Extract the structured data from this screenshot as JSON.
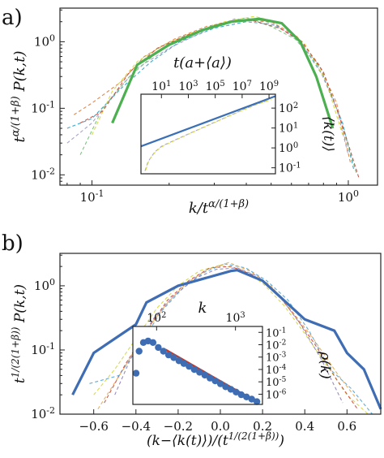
{
  "panel_labels": {
    "a": "a)",
    "b": "b)"
  },
  "palette": [
    "#2b9fc9",
    "#9e9ac8",
    "#6fbf73",
    "#e07b39",
    "#d5d53a",
    "#c9473a",
    "#4fa3d6",
    "#8c7fb8",
    "#e5a94a",
    "#5ab4ac",
    "#b2b843",
    "#d6604d"
  ],
  "chart_data": [
    {
      "id": "a-main",
      "type": "line",
      "xlabel": "k/t^{α/(1+β)}",
      "ylabel": "t^{α/(1+β)} P(k,t)",
      "xscale": "log",
      "yscale": "log",
      "xlim": [
        0.075,
        1.3
      ],
      "ylim": [
        0.007,
        3.2
      ],
      "xticks": [
        {
          "v": 0.1,
          "label": "10^{-1}"
        },
        {
          "v": 1,
          "label": "10^{0}"
        }
      ],
      "yticks": [
        {
          "v": 0.01,
          "label": "10^{-2}"
        },
        {
          "v": 0.1,
          "label": "10^{-1}"
        },
        {
          "v": 1,
          "label": "10^{0}"
        }
      ],
      "highlight": {
        "color": "#4caf50",
        "x": [
          0.12,
          0.15,
          0.2,
          0.27,
          0.35,
          0.45,
          0.55,
          0.65,
          0.75,
          0.87
        ],
        "y": [
          0.06,
          0.45,
          0.9,
          1.5,
          2.0,
          2.2,
          1.9,
          1.0,
          0.3,
          0.05
        ]
      },
      "series": [
        {
          "x": [
            0.08,
            0.1,
            0.13,
            0.17,
            0.22,
            0.3,
            0.4,
            0.52,
            0.65,
            0.8,
            0.95,
            1.05
          ],
          "y": [
            0.05,
            0.07,
            0.2,
            0.5,
            1.0,
            1.6,
            2.0,
            1.8,
            1.0,
            0.3,
            0.06,
            0.012
          ]
        },
        {
          "x": [
            0.08,
            0.1,
            0.12,
            0.15,
            0.2,
            0.27,
            0.36,
            0.48,
            0.6,
            0.75,
            0.9,
            1.0
          ],
          "y": [
            0.03,
            0.06,
            0.15,
            0.4,
            0.8,
            1.4,
            2.2,
            2.0,
            1.3,
            0.5,
            0.1,
            0.02
          ]
        },
        {
          "x": [
            0.09,
            0.11,
            0.14,
            0.18,
            0.23,
            0.3,
            0.4,
            0.5,
            0.62,
            0.78,
            0.92,
            1.08
          ],
          "y": [
            0.02,
            0.1,
            0.3,
            0.7,
            1.2,
            1.8,
            2.3,
            1.7,
            1.1,
            0.4,
            0.08,
            0.01
          ]
        },
        {
          "x": [
            0.085,
            0.1,
            0.13,
            0.16,
            0.21,
            0.28,
            0.38,
            0.5,
            0.63,
            0.77,
            0.9,
            1.02
          ],
          "y": [
            0.08,
            0.12,
            0.25,
            0.6,
            1.1,
            1.7,
            2.1,
            2.0,
            1.2,
            0.45,
            0.12,
            0.015
          ]
        },
        {
          "x": [
            0.1,
            0.12,
            0.15,
            0.19,
            0.25,
            0.33,
            0.43,
            0.55,
            0.68,
            0.82,
            0.95
          ],
          "y": [
            0.04,
            0.18,
            0.5,
            0.9,
            1.4,
            2.0,
            2.4,
            1.9,
            0.9,
            0.25,
            0.04
          ]
        },
        {
          "x": [
            0.09,
            0.11,
            0.14,
            0.18,
            0.24,
            0.32,
            0.42,
            0.54,
            0.66,
            0.8,
            0.93,
            1.1
          ],
          "y": [
            0.06,
            0.09,
            0.35,
            0.8,
            1.3,
            1.9,
            2.1,
            1.6,
            1.0,
            0.35,
            0.07,
            0.009
          ]
        }
      ]
    },
    {
      "id": "a-inset",
      "type": "line",
      "xlabel": "t(a+⟨a⟩)",
      "ylabel": "⟨k(t)⟩",
      "xscale": "log",
      "yscale": "log",
      "xlim": [
        0.3,
        3000000000.0
      ],
      "ylim": [
        0.05,
        500
      ],
      "xticks": [
        {
          "v": 10,
          "label": "10^{1}"
        },
        {
          "v": 1000,
          "label": "10^{3}"
        },
        {
          "v": 100000,
          "label": "10^{5}"
        },
        {
          "v": 10000000,
          "label": "10^{7}"
        },
        {
          "v": 1000000000,
          "label": "10^{9}"
        }
      ],
      "yticks": [
        {
          "v": 0.1,
          "label": "10^{-1}"
        },
        {
          "v": 1,
          "label": "10^{0}"
        },
        {
          "v": 10,
          "label": "10^{1}"
        },
        {
          "v": 100,
          "label": "10^{2}"
        }
      ],
      "fit": {
        "color": "#3b6fb6",
        "x": [
          0.3,
          3000000000.0
        ],
        "y": [
          1.2,
          400
        ]
      },
      "series": [
        {
          "x": [
            0.6,
            1,
            3,
            10,
            100,
            1000,
            10000,
            100000,
            1000000,
            10000000,
            100000000,
            1000000000
          ],
          "y": [
            0.07,
            0.2,
            0.6,
            1.2,
            2.5,
            5,
            10,
            20,
            40,
            80,
            150,
            250
          ]
        },
        {
          "x": [
            0.7,
            1.2,
            4,
            15,
            150,
            1500,
            15000,
            150000,
            1500000,
            15000000,
            150000000,
            1500000000
          ],
          "y": [
            0.08,
            0.25,
            0.7,
            1.3,
            2.7,
            5.5,
            11,
            22,
            44,
            85,
            160,
            270
          ]
        }
      ]
    },
    {
      "id": "b-main",
      "type": "line",
      "xlabel": "(k−⟨k(t)⟩)/(t^{1/(2(1+β))})",
      "ylabel": "t^{1/(2(1+β))} P(k,t)",
      "xscale": "linear",
      "yscale": "log",
      "xlim": [
        -0.76,
        0.76
      ],
      "ylim": [
        0.01,
        3.2
      ],
      "xticks": [
        {
          "v": -0.6,
          "label": "−0.6"
        },
        {
          "v": -0.4,
          "label": "−0.4"
        },
        {
          "v": -0.2,
          "label": "−0.2"
        },
        {
          "v": 0,
          "label": "0.0"
        },
        {
          "v": 0.2,
          "label": "0.2"
        },
        {
          "v": 0.4,
          "label": "0.4"
        },
        {
          "v": 0.6,
          "label": "0.6"
        }
      ],
      "yticks": [
        {
          "v": 0.01,
          "label": "10^{-2}"
        },
        {
          "v": 0.1,
          "label": "10^{-1}"
        },
        {
          "v": 1,
          "label": "10^{0}"
        }
      ],
      "highlight": {
        "color": "#3f6db3",
        "x": [
          -0.7,
          -0.6,
          -0.4,
          -0.35,
          -0.2,
          0.05,
          0.08,
          0.2,
          0.4,
          0.54,
          0.6,
          0.68,
          0.76
        ],
        "y": [
          0.02,
          0.09,
          0.25,
          0.55,
          1.0,
          1.7,
          1.75,
          1.2,
          0.3,
          0.2,
          0.09,
          0.05,
          0.012
        ]
      },
      "series": [
        {
          "x": [
            -0.6,
            -0.5,
            -0.4,
            -0.3,
            -0.2,
            -0.1,
            0,
            0.1,
            0.2,
            0.3,
            0.4,
            0.5,
            0.6,
            0.7
          ],
          "y": [
            0.02,
            0.05,
            0.15,
            0.45,
            1.0,
            1.7,
            2.1,
            1.8,
            1.1,
            0.5,
            0.18,
            0.06,
            0.02,
            0.01
          ]
        },
        {
          "x": [
            -0.55,
            -0.45,
            -0.35,
            -0.25,
            -0.15,
            -0.05,
            0.05,
            0.15,
            0.25,
            0.35,
            0.45,
            0.55,
            0.65
          ],
          "y": [
            0.015,
            0.06,
            0.2,
            0.6,
            1.2,
            1.9,
            2.0,
            1.5,
            0.9,
            0.35,
            0.12,
            0.035,
            0.012
          ]
        },
        {
          "x": [
            -0.62,
            -0.48,
            -0.38,
            -0.28,
            -0.18,
            -0.08,
            0.02,
            0.12,
            0.22,
            0.32,
            0.42,
            0.52,
            0.62,
            0.72
          ],
          "y": [
            0.03,
            0.04,
            0.12,
            0.4,
            0.9,
            1.6,
            2.2,
            1.9,
            1.2,
            0.6,
            0.2,
            0.05,
            0.025,
            0.01
          ]
        },
        {
          "x": [
            -0.5,
            -0.42,
            -0.32,
            -0.22,
            -0.12,
            -0.02,
            0.08,
            0.18,
            0.28,
            0.38,
            0.48,
            0.58
          ],
          "y": [
            0.02,
            0.08,
            0.3,
            0.7,
            1.3,
            1.8,
            1.9,
            1.4,
            0.7,
            0.25,
            0.07,
            0.015
          ]
        },
        {
          "x": [
            -0.58,
            -0.46,
            -0.36,
            -0.26,
            -0.16,
            -0.06,
            0.04,
            0.14,
            0.24,
            0.34,
            0.44,
            0.56,
            0.66
          ],
          "y": [
            0.012,
            0.05,
            0.18,
            0.5,
            1.1,
            1.8,
            2.3,
            1.7,
            1.0,
            0.4,
            0.15,
            0.04,
            0.015
          ]
        }
      ]
    },
    {
      "id": "b-inset",
      "type": "scatter",
      "xlabel": "k",
      "ylabel": "ρ(k)",
      "xscale": "log",
      "yscale": "log",
      "xlim": [
        50,
        2200
      ],
      "ylim": [
        1.5e-07,
        0.3
      ],
      "xticks": [
        {
          "v": 100,
          "label": "10^{2}"
        },
        {
          "v": 1000,
          "label": "10^{3}"
        }
      ],
      "yticks": [
        {
          "v": 0.1,
          "label": "10^{-1}"
        },
        {
          "v": 0.01,
          "label": "10^{-2}"
        },
        {
          "v": 0.001,
          "label": "10^{-3}"
        },
        {
          "v": 0.0001,
          "label": "10^{-4}"
        },
        {
          "v": 1e-05,
          "label": "10^{-5}"
        },
        {
          "v": 1e-06,
          "label": "10^{-6}"
        }
      ],
      "fit": {
        "color": "#c0392b",
        "x": [
          130,
          1950
        ],
        "y": [
          0.004,
          2e-07
        ]
      },
      "marker_color": "#3f6db3",
      "x": [
        55,
        60,
        68,
        78,
        90,
        105,
        122,
        142,
        165,
        192,
        222,
        258,
        300,
        350,
        408,
        475,
        553,
        644,
        750,
        873,
        1017,
        1184,
        1379,
        1606,
        1870
      ],
      "y": [
        5e-05,
        0.003,
        0.015,
        0.02,
        0.015,
        0.006,
        0.003,
        0.0015,
        0.0009,
        0.0005,
        0.0003,
        0.00018,
        0.0001,
        6e-05,
        3.5e-05,
        2e-05,
        1.2e-05,
        7e-06,
        4e-06,
        2.5e-06,
        1.5e-06,
        9e-07,
        6e-07,
        4e-07,
        2.5e-07
      ]
    }
  ]
}
